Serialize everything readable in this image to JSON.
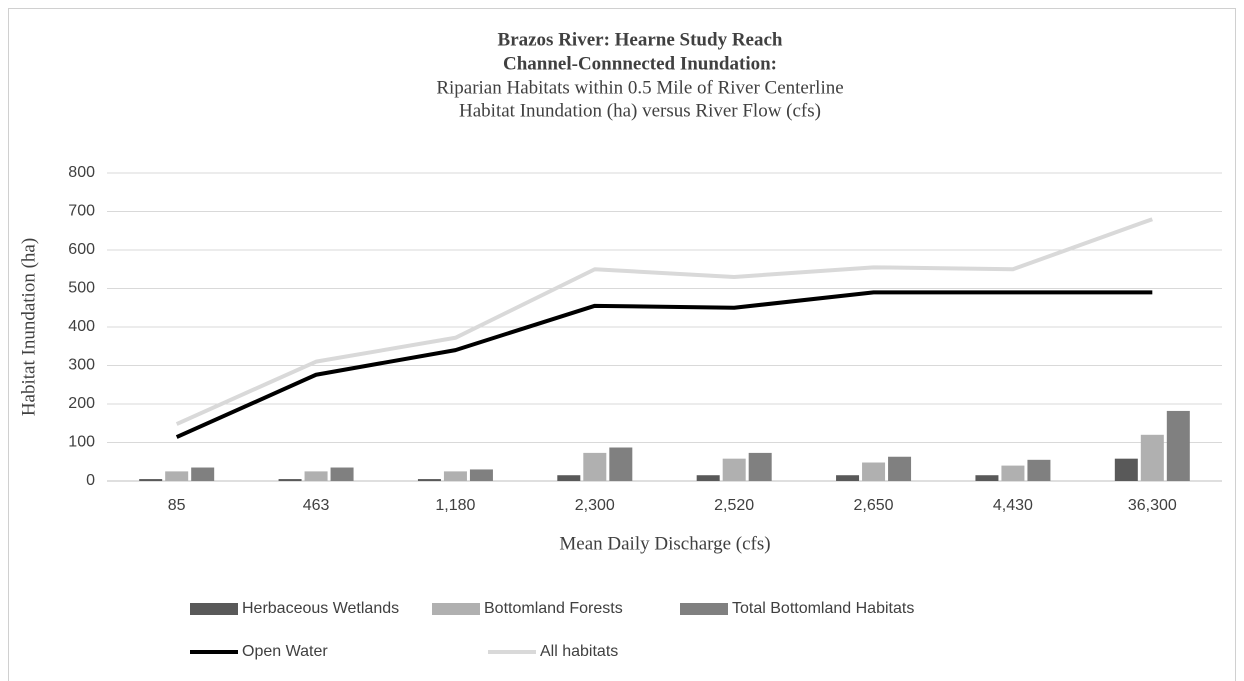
{
  "chart_data": {
    "type": "combo",
    "title": [
      "Brazos River: Hearne Study Reach",
      "Channel-Connnected Inundation:"
    ],
    "subtitle": [
      "Riparian Habitats within 0.5 Mile of River Centerline",
      "Habitat Inundation (ha) versus River Flow (cfs)"
    ],
    "x_label": "Mean Daily Discharge (cfs)",
    "y_label": "Habitat Inundation (ha)",
    "categories": [
      "85",
      "463",
      "1,180",
      "2,300",
      "2,520",
      "2,650",
      "4,430",
      "36,300"
    ],
    "series": [
      {
        "name": "Herbaceous Wetlands",
        "kind": "bar",
        "color": "#595959",
        "values": [
          5,
          5,
          5,
          15,
          15,
          15,
          15,
          58
        ]
      },
      {
        "name": "Bottomland Forests",
        "kind": "bar",
        "color": "#b0b0b0",
        "values": [
          25,
          25,
          25,
          73,
          58,
          48,
          40,
          120
        ]
      },
      {
        "name": "Total Bottomland Habitats",
        "kind": "bar",
        "color": "#808080",
        "values": [
          35,
          35,
          30,
          87,
          73,
          63,
          55,
          182
        ]
      },
      {
        "name": "Open Water",
        "kind": "line",
        "color": "#000000",
        "values": [
          114,
          276,
          340,
          455,
          450,
          490,
          490,
          490
        ]
      },
      {
        "name": "All habitats",
        "kind": "line",
        "color": "#d9d9d9",
        "values": [
          148,
          310,
          372,
          550,
          530,
          555,
          550,
          680
        ]
      }
    ],
    "ylim": [
      0,
      800
    ],
    "yticks": [
      0,
      100,
      200,
      300,
      400,
      500,
      600,
      700,
      800
    ],
    "grid": true,
    "legend": "bottom"
  }
}
